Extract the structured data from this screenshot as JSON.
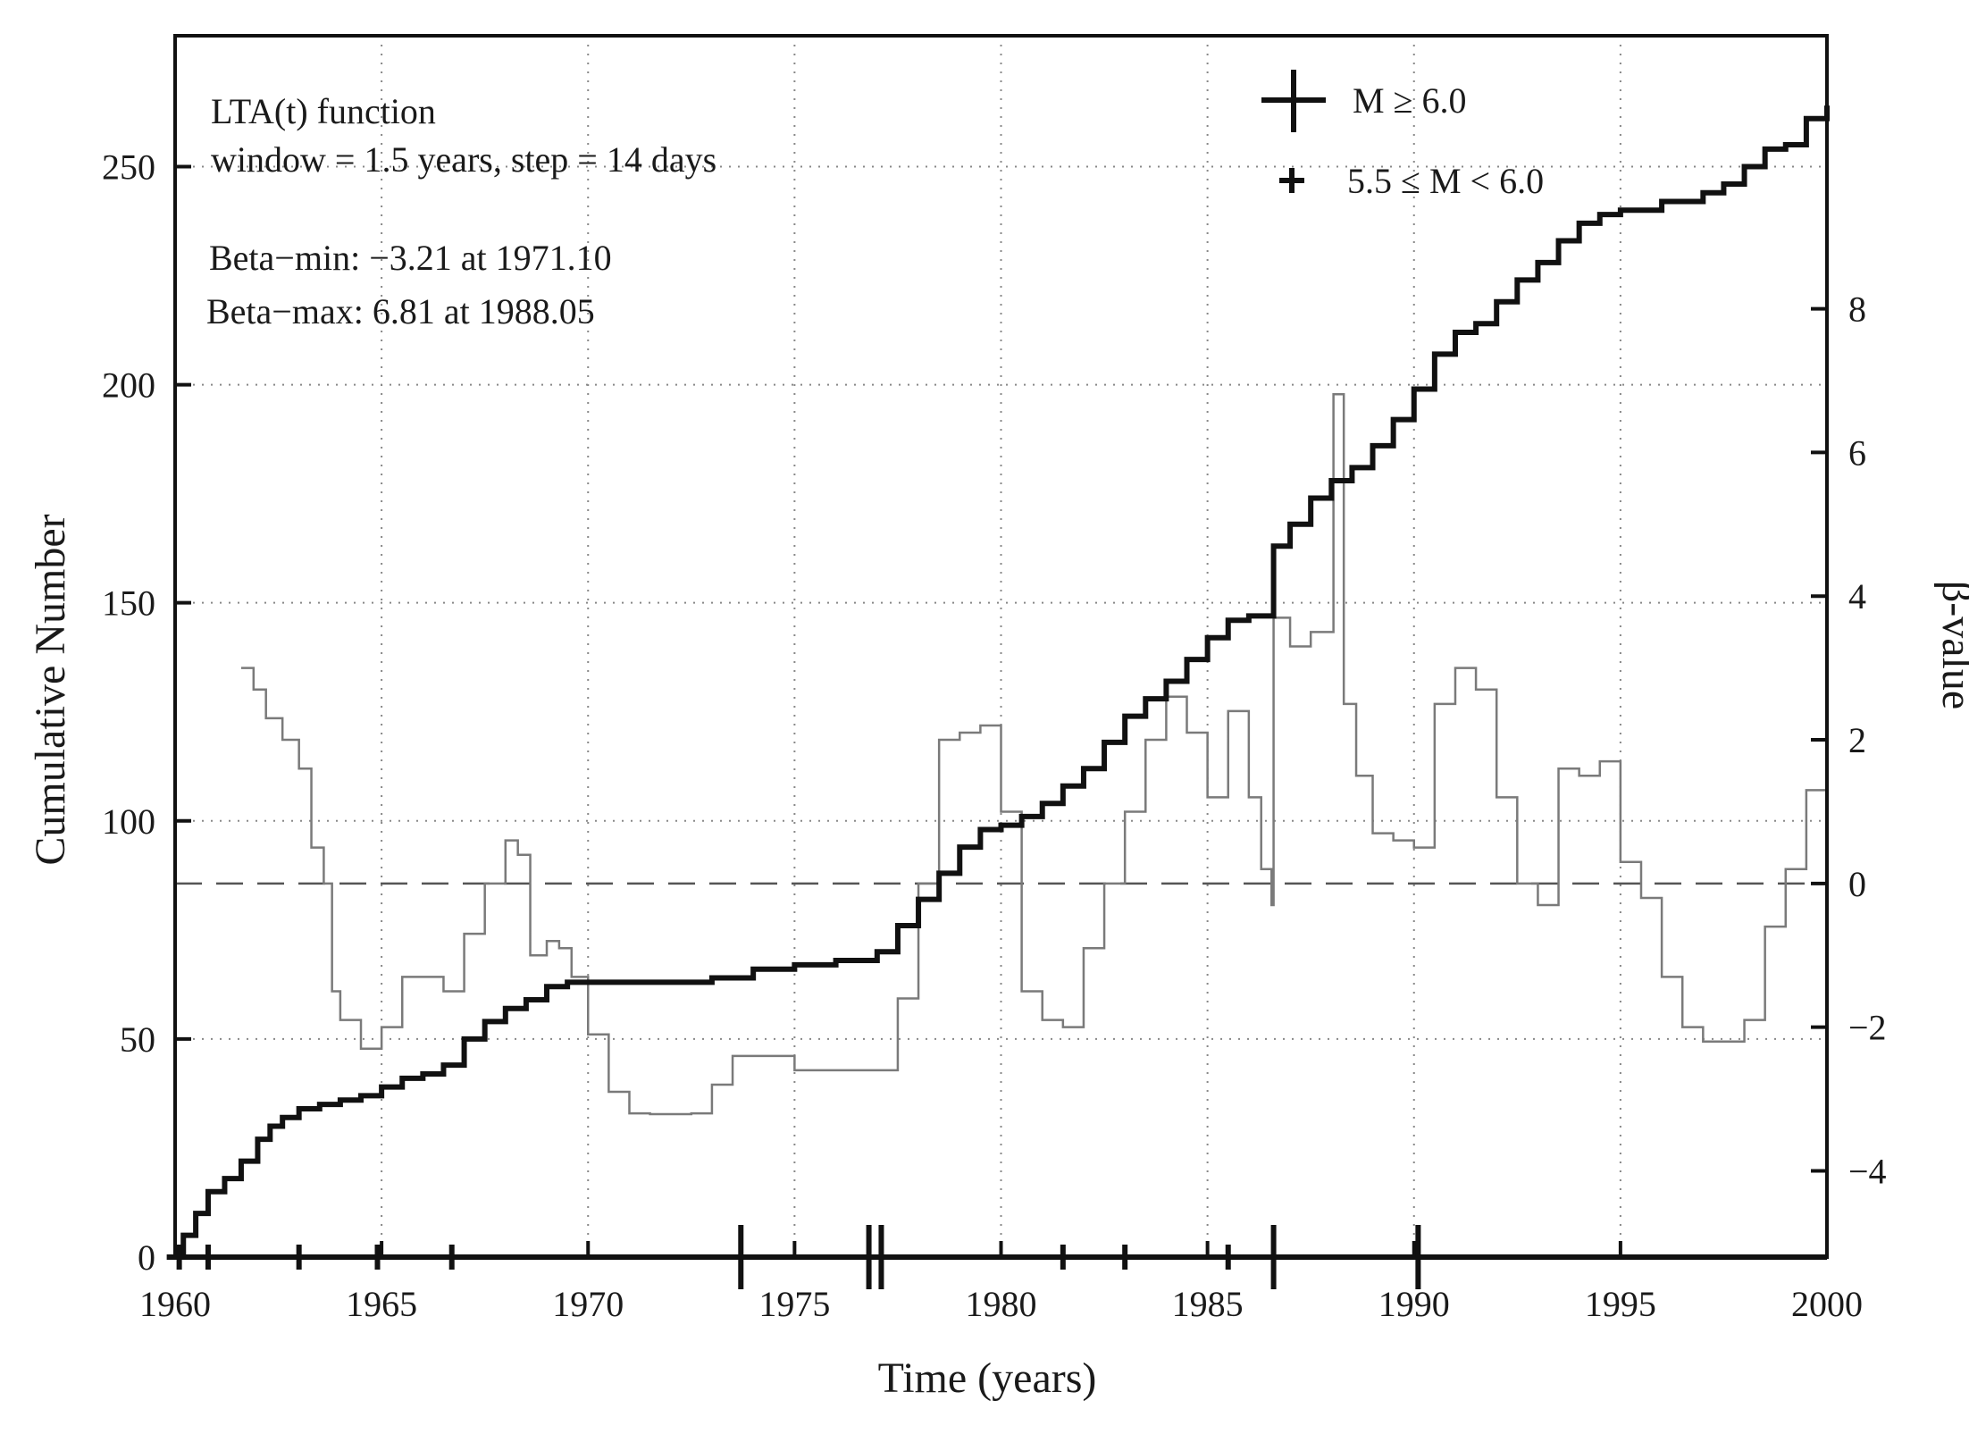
{
  "chart_data": {
    "type": "line",
    "title": "",
    "xlabel": "Time (years)",
    "ylabel": "Cumulative Number",
    "y2label": "β-value",
    "xlim": [
      1960,
      2000
    ],
    "ylim": [
      0,
      280
    ],
    "y2lim": [
      -5.2,
      11.8
    ],
    "x_ticks": [
      "1960",
      "1965",
      "1970",
      "1975",
      "1980",
      "1985",
      "1990",
      "1995",
      "2000"
    ],
    "y_ticks": [
      "0",
      "50",
      "100",
      "150",
      "200",
      "250"
    ],
    "y2_ticks": [
      "−4",
      "−2",
      "0",
      "2",
      "4",
      "6",
      "8"
    ],
    "grid": "dotted",
    "annotations": [
      "LTA(t) function",
      "window = 1.5 years, step = 14 days",
      "Beta−min: −3.21 at 1971.10",
      "Beta−max: 6.81 at 1988.05"
    ],
    "legend": {
      "position": "top-right",
      "items": [
        {
          "symbol": "large-plus",
          "label": "M ≥ 6.0"
        },
        {
          "symbol": "small-plus",
          "label": "5.5 ≤ M < 6.0"
        }
      ]
    },
    "series": [
      {
        "name": "Cumulative Number",
        "axis": "left",
        "style": "thick-black-step",
        "x": [
          1960.0,
          1960.2,
          1960.5,
          1960.8,
          1961.2,
          1961.6,
          1962.0,
          1962.3,
          1962.6,
          1963.0,
          1963.5,
          1964.0,
          1964.5,
          1965.0,
          1965.5,
          1966.0,
          1966.5,
          1967.0,
          1967.5,
          1968.0,
          1968.5,
          1969.0,
          1969.5,
          1970.0,
          1971.0,
          1972.0,
          1973.0,
          1974.0,
          1975.0,
          1976.0,
          1977.0,
          1977.5,
          1978.0,
          1978.5,
          1979.0,
          1979.5,
          1980.0,
          1980.5,
          1981.0,
          1981.5,
          1982.0,
          1982.5,
          1983.0,
          1983.5,
          1984.0,
          1984.5,
          1985.0,
          1985.5,
          1986.0,
          1986.5,
          1986.6,
          1987.0,
          1987.5,
          1988.0,
          1988.5,
          1989.0,
          1989.5,
          1990.0,
          1990.5,
          1991.0,
          1991.5,
          1992.0,
          1992.5,
          1993.0,
          1993.5,
          1994.0,
          1994.5,
          1995.0,
          1996.0,
          1997.0,
          1997.5,
          1998.0,
          1998.5,
          1999.0,
          1999.5,
          2000.0
        ],
        "values": [
          0,
          5,
          10,
          15,
          18,
          22,
          27,
          30,
          32,
          34,
          35,
          36,
          37,
          39,
          41,
          42,
          44,
          50,
          54,
          57,
          59,
          62,
          63,
          63,
          63,
          63,
          64,
          66,
          67,
          68,
          70,
          76,
          82,
          88,
          94,
          98,
          99,
          101,
          104,
          108,
          112,
          118,
          124,
          128,
          132,
          137,
          142,
          146,
          147,
          147,
          163,
          168,
          174,
          178,
          181,
          186,
          192,
          199,
          207,
          212,
          214,
          219,
          224,
          228,
          233,
          237,
          239,
          240,
          242,
          244,
          246,
          250,
          254,
          255,
          261,
          264
        ]
      },
      {
        "name": "β-value",
        "axis": "right",
        "style": "thin-gray-step",
        "x": [
          1961.6,
          1961.9,
          1962.2,
          1962.6,
          1963.0,
          1963.3,
          1963.6,
          1963.8,
          1964.0,
          1964.5,
          1964.8,
          1965.0,
          1965.5,
          1966.0,
          1966.5,
          1967.0,
          1967.5,
          1968.0,
          1968.3,
          1968.6,
          1969.0,
          1969.3,
          1969.6,
          1970.0,
          1970.5,
          1971.0,
          1971.5,
          1972.0,
          1972.5,
          1973.0,
          1973.5,
          1974.0,
          1975.0,
          1976.0,
          1977.0,
          1977.5,
          1978.0,
          1978.5,
          1979.0,
          1979.5,
          1980.0,
          1980.5,
          1981.0,
          1981.5,
          1982.0,
          1982.5,
          1983.0,
          1983.5,
          1984.0,
          1984.5,
          1985.0,
          1985.5,
          1986.0,
          1986.3,
          1986.55,
          1986.6,
          1987.0,
          1987.5,
          1988.05,
          1988.3,
          1988.6,
          1989.0,
          1989.5,
          1990.0,
          1990.5,
          1991.0,
          1991.5,
          1992.0,
          1992.5,
          1993.0,
          1993.5,
          1994.0,
          1994.5,
          1995.0,
          1995.5,
          1996.0,
          1996.5,
          1997.0,
          1997.5,
          1998.0,
          1998.5,
          1999.0,
          1999.5,
          2000.0
        ],
        "values": [
          3.0,
          2.7,
          2.3,
          2.0,
          1.6,
          0.5,
          0.0,
          -1.5,
          -1.9,
          -2.3,
          -2.3,
          -2.0,
          -1.3,
          -1.3,
          -1.5,
          -0.7,
          0.0,
          0.6,
          0.4,
          -1.0,
          -0.8,
          -0.9,
          -1.3,
          -2.1,
          -2.9,
          -3.2,
          -3.21,
          -3.21,
          -3.2,
          -2.8,
          -2.4,
          -2.4,
          -2.6,
          -2.6,
          -2.6,
          -1.6,
          0.0,
          2.0,
          2.1,
          2.2,
          1.0,
          -1.5,
          -1.9,
          -2.0,
          -0.9,
          0.0,
          1.0,
          2.0,
          2.6,
          2.1,
          1.2,
          2.4,
          1.2,
          0.2,
          -0.3,
          3.7,
          3.3,
          3.5,
          6.81,
          2.5,
          1.5,
          0.7,
          0.6,
          0.5,
          2.5,
          3.0,
          2.7,
          1.2,
          0.0,
          -0.3,
          1.6,
          1.5,
          1.7,
          0.3,
          -0.2,
          -1.3,
          -2.0,
          -2.2,
          -2.2,
          -1.9,
          -0.6,
          0.2,
          1.3,
          0.3
        ]
      }
    ],
    "events": [
      {
        "x": 1960.1,
        "size": "small"
      },
      {
        "x": 1960.8,
        "size": "small"
      },
      {
        "x": 1963.0,
        "size": "small"
      },
      {
        "x": 1964.9,
        "size": "small"
      },
      {
        "x": 1966.7,
        "size": "small"
      },
      {
        "x": 1973.7,
        "size": "large"
      },
      {
        "x": 1976.8,
        "size": "large"
      },
      {
        "x": 1977.1,
        "size": "large"
      },
      {
        "x": 1981.5,
        "size": "small"
      },
      {
        "x": 1983.0,
        "size": "small"
      },
      {
        "x": 1985.5,
        "size": "small"
      },
      {
        "x": 1986.6,
        "size": "large"
      },
      {
        "x": 1990.1,
        "size": "large"
      }
    ]
  }
}
